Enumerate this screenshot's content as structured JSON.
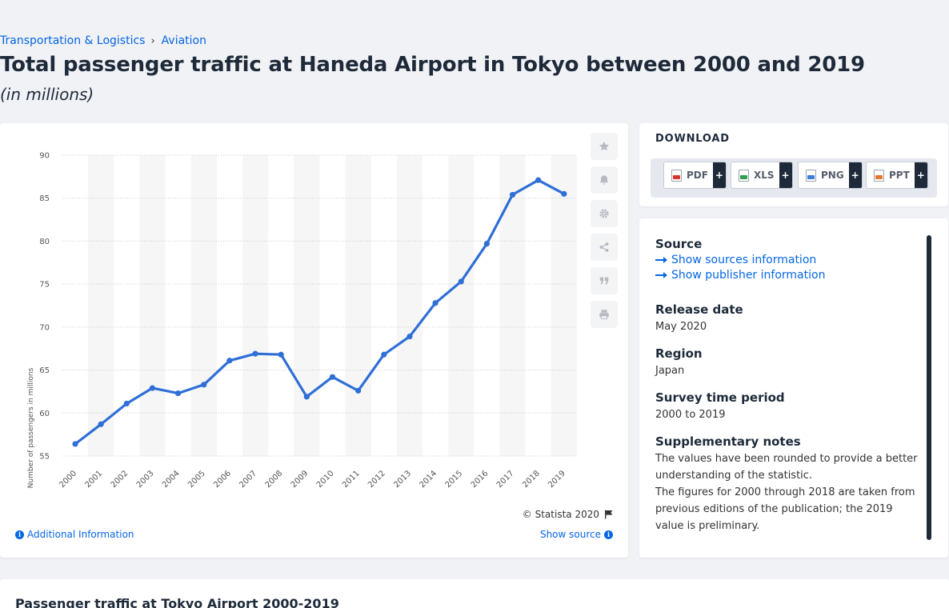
{
  "breadcrumb": {
    "category": "Transportation & Logistics",
    "separator": "›",
    "subcategory": "Aviation"
  },
  "title": "Total passenger traffic at Haneda Airport in Tokyo between 2000 and 2019",
  "subtitle": "(in millions)",
  "toolbar": {
    "icons": [
      "star-icon",
      "bell-icon",
      "gear-icon",
      "share-icon",
      "quote-icon",
      "print-icon"
    ]
  },
  "credit": "© Statista 2020",
  "additional_info": "Additional Information",
  "show_source": "Show source",
  "download": {
    "title": "DOWNLOAD",
    "buttons": [
      {
        "label": "PDF",
        "plus": "+"
      },
      {
        "label": "XLS",
        "plus": "+"
      },
      {
        "label": "PNG",
        "plus": "+"
      },
      {
        "label": "PPT",
        "plus": "+"
      }
    ]
  },
  "source": {
    "heading": "Source",
    "show_sources": "Show sources information",
    "show_publisher": "Show publisher information",
    "release_label": "Release date",
    "release_value": "May 2020",
    "region_label": "Region",
    "region_value": "Japan",
    "survey_label": "Survey time period",
    "survey_value": "2000 to 2019",
    "notes_label": "Supplementary notes",
    "notes_1": "The values have been rounded to provide a better understanding of the statistic.",
    "notes_2": "The figures for 2000 through 2018 are taken from previous editions of the publication; the 2019 value is preliminary."
  },
  "related_title": "Passenger traffic at Tokyo Airport 2000-2019",
  "colors": {
    "line": "#2f6fd6",
    "accent": "#0666e5",
    "band": "#f6f6f6",
    "grid": "#cccccc"
  },
  "chart_data": {
    "type": "line",
    "categories": [
      "2000",
      "2001",
      "2002",
      "2003",
      "2004",
      "2005",
      "2006",
      "2007",
      "2008",
      "2009",
      "2010",
      "2011",
      "2012",
      "2013",
      "2014",
      "2015",
      "2016",
      "2017",
      "2018",
      "2019"
    ],
    "series": [
      {
        "values": [
          56.4,
          58.7,
          61.1,
          62.9,
          62.3,
          63.3,
          66.1,
          66.9,
          66.8,
          61.9,
          64.2,
          62.6,
          66.8,
          68.9,
          72.8,
          75.3,
          79.7,
          85.4,
          87.1,
          85.5
        ]
      }
    ],
    "ylabel": "Number of passengers in millions",
    "yticks": [
      55,
      60,
      65,
      70,
      75,
      80,
      85,
      90
    ],
    "ylim": [
      55,
      90
    ],
    "grid": true
  }
}
